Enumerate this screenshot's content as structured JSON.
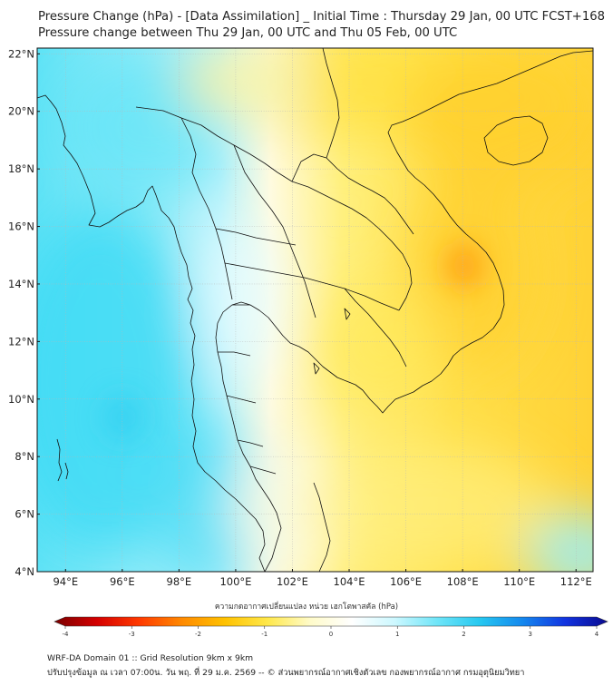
{
  "header": {
    "title": "Pressure Change (hPa) - [Data Assimilation] _ Initial Time : Thursday 29 Jan, 00 UTC FCST+168",
    "subtitle": "Pressure change between Thu 29 Jan, 00 UTC and Thu 05 Feb, 00 UTC"
  },
  "map": {
    "lat_labels": [
      "22°N",
      "20°N",
      "18°N",
      "16°N",
      "14°N",
      "12°N",
      "10°N",
      "8°N",
      "6°N",
      "4°N"
    ],
    "lon_labels": [
      "94°E",
      "96°E",
      "98°E",
      "100°E",
      "102°E",
      "104°E",
      "106°E",
      "108°E",
      "110°E",
      "112°E"
    ],
    "lat_values": [
      22,
      20,
      18,
      16,
      14,
      12,
      10,
      8,
      6,
      4
    ],
    "lon_values": [
      94,
      96,
      98,
      100,
      102,
      104,
      106,
      108,
      110,
      112
    ],
    "extent": {
      "lon": [
        93.0,
        112.6
      ],
      "lat": [
        4.0,
        22.2
      ]
    },
    "gridlines": true
  },
  "colorbar": {
    "label": "ความกดอากาศเปลี่ยนแปลง หน่วย เฮกโตพาสคัล (hPa)",
    "ticks": [
      "-4",
      "-3",
      "-2",
      "-1",
      "0",
      "1",
      "2",
      "3",
      "4"
    ],
    "tick_values": [
      -4,
      -3,
      -2,
      -1,
      0,
      1,
      2,
      3,
      4
    ],
    "range": [
      -4,
      4
    ],
    "colors": [
      "#7a0000",
      "#d40000",
      "#ff3a00",
      "#ff8a00",
      "#ffc200",
      "#ffe84a",
      "#fffbc9",
      "#ffffff",
      "#cdf8ff",
      "#6fe5f8",
      "#26c8f0",
      "#1488ee",
      "#1234e0",
      "#0a0a90"
    ]
  },
  "footer": {
    "line1": "WRF-DA Domain 01 :: Grid Resolution 9km x 9km",
    "line2": "ปรับปรุงข้อมูล ณ เวลา 07:00น. วัน พฤ. ที่ 29 ม.ค. 2569 -- © ส่วนพยากรณ์อากาศเชิงตัวเลข กองพยากรณ์อากาศ กรมอุตุนิยมวิทยา"
  }
}
